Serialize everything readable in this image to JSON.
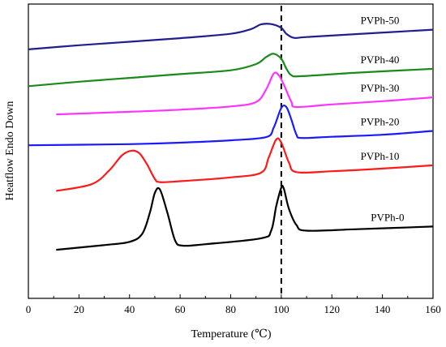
{
  "chart_data": {
    "type": "line",
    "title": "",
    "xlabel": "Temperature (℃)",
    "ylabel": "Heatflow Endo Down",
    "xlim": [
      0,
      160
    ],
    "ylim": [
      0,
      100
    ],
    "x_ticks": [
      "0",
      "20",
      "40",
      "60",
      "80",
      "100",
      "120",
      "140",
      "160"
    ],
    "x_tick_values": [
      0,
      20,
      40,
      60,
      80,
      100,
      120,
      140,
      160
    ],
    "y_ticks_shown": false,
    "grid": false,
    "legend": "inline labels at right of each curve",
    "reference_line": {
      "x": 100,
      "style": "dashed",
      "color": "#000000"
    },
    "series": [
      {
        "name": "PVPh-50",
        "color": "#1f1f8f",
        "label_x": 139,
        "points": [
          [
            0,
            84.6
          ],
          [
            20,
            86.0
          ],
          [
            40,
            87.2
          ],
          [
            60,
            88.4
          ],
          [
            80,
            89.9
          ],
          [
            88,
            91.5
          ],
          [
            92,
            93.1
          ],
          [
            96,
            93.2
          ],
          [
            100,
            91.9
          ],
          [
            102,
            89.9
          ],
          [
            105,
            88.5
          ],
          [
            110,
            88.8
          ],
          [
            130,
            89.8
          ],
          [
            160,
            91.3
          ]
        ]
      },
      {
        "name": "PVPh-40",
        "color": "#1a8a1a",
        "label_x": 139,
        "points": [
          [
            0,
            72.1
          ],
          [
            20,
            73.6
          ],
          [
            40,
            74.9
          ],
          [
            60,
            76.2
          ],
          [
            80,
            77.5
          ],
          [
            90,
            79.6
          ],
          [
            94,
            82.0
          ],
          [
            97,
            83.1
          ],
          [
            100,
            81.4
          ],
          [
            102,
            78.1
          ],
          [
            104,
            75.8
          ],
          [
            108,
            75.5
          ],
          [
            130,
            76.7
          ],
          [
            160,
            78.0
          ]
        ]
      },
      {
        "name": "PVPh-30",
        "color": "#ff33ff",
        "label_x": 139,
        "points": [
          [
            11,
            62.5
          ],
          [
            40,
            63.4
          ],
          [
            60,
            64.1
          ],
          [
            80,
            65.2
          ],
          [
            90,
            66.7
          ],
          [
            94,
            71.0
          ],
          [
            97,
            76.4
          ],
          [
            99,
            75.8
          ],
          [
            101,
            72.6
          ],
          [
            104,
            66.7
          ],
          [
            106,
            65.0
          ],
          [
            120,
            65.9
          ],
          [
            140,
            67.0
          ],
          [
            160,
            68.3
          ]
        ]
      },
      {
        "name": "PVPh-20",
        "color": "#1a1aff",
        "label_x": 139,
        "points": [
          [
            0,
            52.0
          ],
          [
            40,
            52.4
          ],
          [
            60,
            52.9
          ],
          [
            80,
            53.7
          ],
          [
            94,
            54.8
          ],
          [
            97,
            58.0
          ],
          [
            100,
            64.7
          ],
          [
            102,
            65.0
          ],
          [
            104,
            60.7
          ],
          [
            106,
            55.6
          ],
          [
            108,
            54.5
          ],
          [
            120,
            54.9
          ],
          [
            140,
            55.6
          ],
          [
            160,
            56.9
          ]
        ]
      },
      {
        "name": "PVPh-10",
        "color": "#ff1a1a",
        "label_x": 139,
        "points": [
          [
            11,
            36.5
          ],
          [
            25,
            38.8
          ],
          [
            32,
            43.5
          ],
          [
            37,
            48.6
          ],
          [
            41,
            50.2
          ],
          [
            44,
            49.2
          ],
          [
            47,
            45.4
          ],
          [
            50,
            40.6
          ],
          [
            52,
            39.5
          ],
          [
            60,
            39.8
          ],
          [
            80,
            41.1
          ],
          [
            92,
            42.7
          ],
          [
            95,
            47.8
          ],
          [
            98,
            54.0
          ],
          [
            100,
            52.9
          ],
          [
            103,
            46.2
          ],
          [
            106,
            42.9
          ],
          [
            120,
            43.2
          ],
          [
            140,
            44.1
          ],
          [
            160,
            45.2
          ]
        ]
      },
      {
        "name": "PVPh-0",
        "color": "#000000",
        "label_x": 142,
        "points": [
          [
            11,
            16.5
          ],
          [
            30,
            18.1
          ],
          [
            40,
            19.2
          ],
          [
            45,
            21.9
          ],
          [
            48,
            29.0
          ],
          [
            50,
            35.8
          ],
          [
            52,
            37.0
          ],
          [
            55,
            29.0
          ],
          [
            58,
            19.7
          ],
          [
            61,
            17.9
          ],
          [
            70,
            18.4
          ],
          [
            92,
            20.4
          ],
          [
            96,
            23.0
          ],
          [
            98,
            31.3
          ],
          [
            100,
            37.6
          ],
          [
            101,
            37.3
          ],
          [
            103,
            30.5
          ],
          [
            106,
            24.9
          ],
          [
            110,
            23.0
          ],
          [
            130,
            23.5
          ],
          [
            160,
            24.4
          ]
        ]
      }
    ]
  }
}
